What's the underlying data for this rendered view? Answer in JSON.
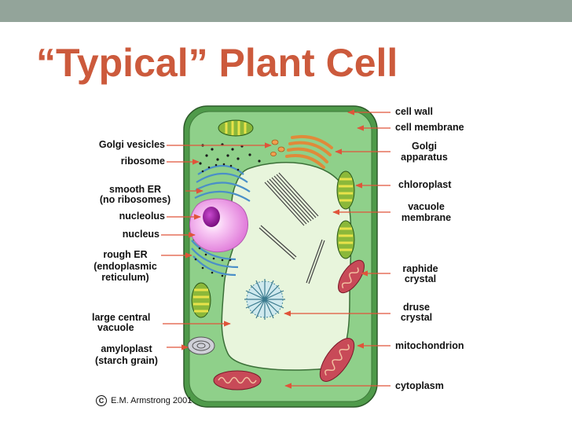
{
  "slide": {
    "title": "“Typical” Plant Cell"
  },
  "diagram": {
    "labels_left": {
      "golgi_vesicles": "Golgi vesicles",
      "ribosome": "ribosome",
      "smooth_er_1": "smooth ER",
      "smooth_er_2": "(no ribosomes)",
      "nucleolus": "nucleolus",
      "nucleus": "nucleus",
      "rough_er_1": "rough ER",
      "rough_er_2": "(endoplasmic",
      "rough_er_3": "reticulum)",
      "vacuole_1": "large central",
      "vacuole_2": "vacuole",
      "amyloplast_1": "amyloplast",
      "amyloplast_2": "(starch grain)"
    },
    "labels_right": {
      "cell_wall": "cell wall",
      "cell_membrane": "cell membrane",
      "golgi_1": "Golgi",
      "golgi_2": "apparatus",
      "chloroplast": "chloroplast",
      "vacuole_membrane_1": "vacuole",
      "vacuole_membrane_2": "membrane",
      "raphide_1": "raphide",
      "raphide_2": "crystal",
      "druse_1": "druse",
      "druse_2": "crystal",
      "mitochondrion": "mitochondrion",
      "cytoplasm": "cytoplasm"
    },
    "credit": "E.M. Armstrong 2001",
    "credit_symbol": "C",
    "colors": {
      "title": "#cc5a3c",
      "cell_wall": "#4f9a4a",
      "cytoplasm": "#8fd08a",
      "vacuole": "#e8f5dc",
      "arrow": "#e0543a",
      "nucleus": "#f2a6ef",
      "nucleolus": "#9b1a9e"
    }
  }
}
